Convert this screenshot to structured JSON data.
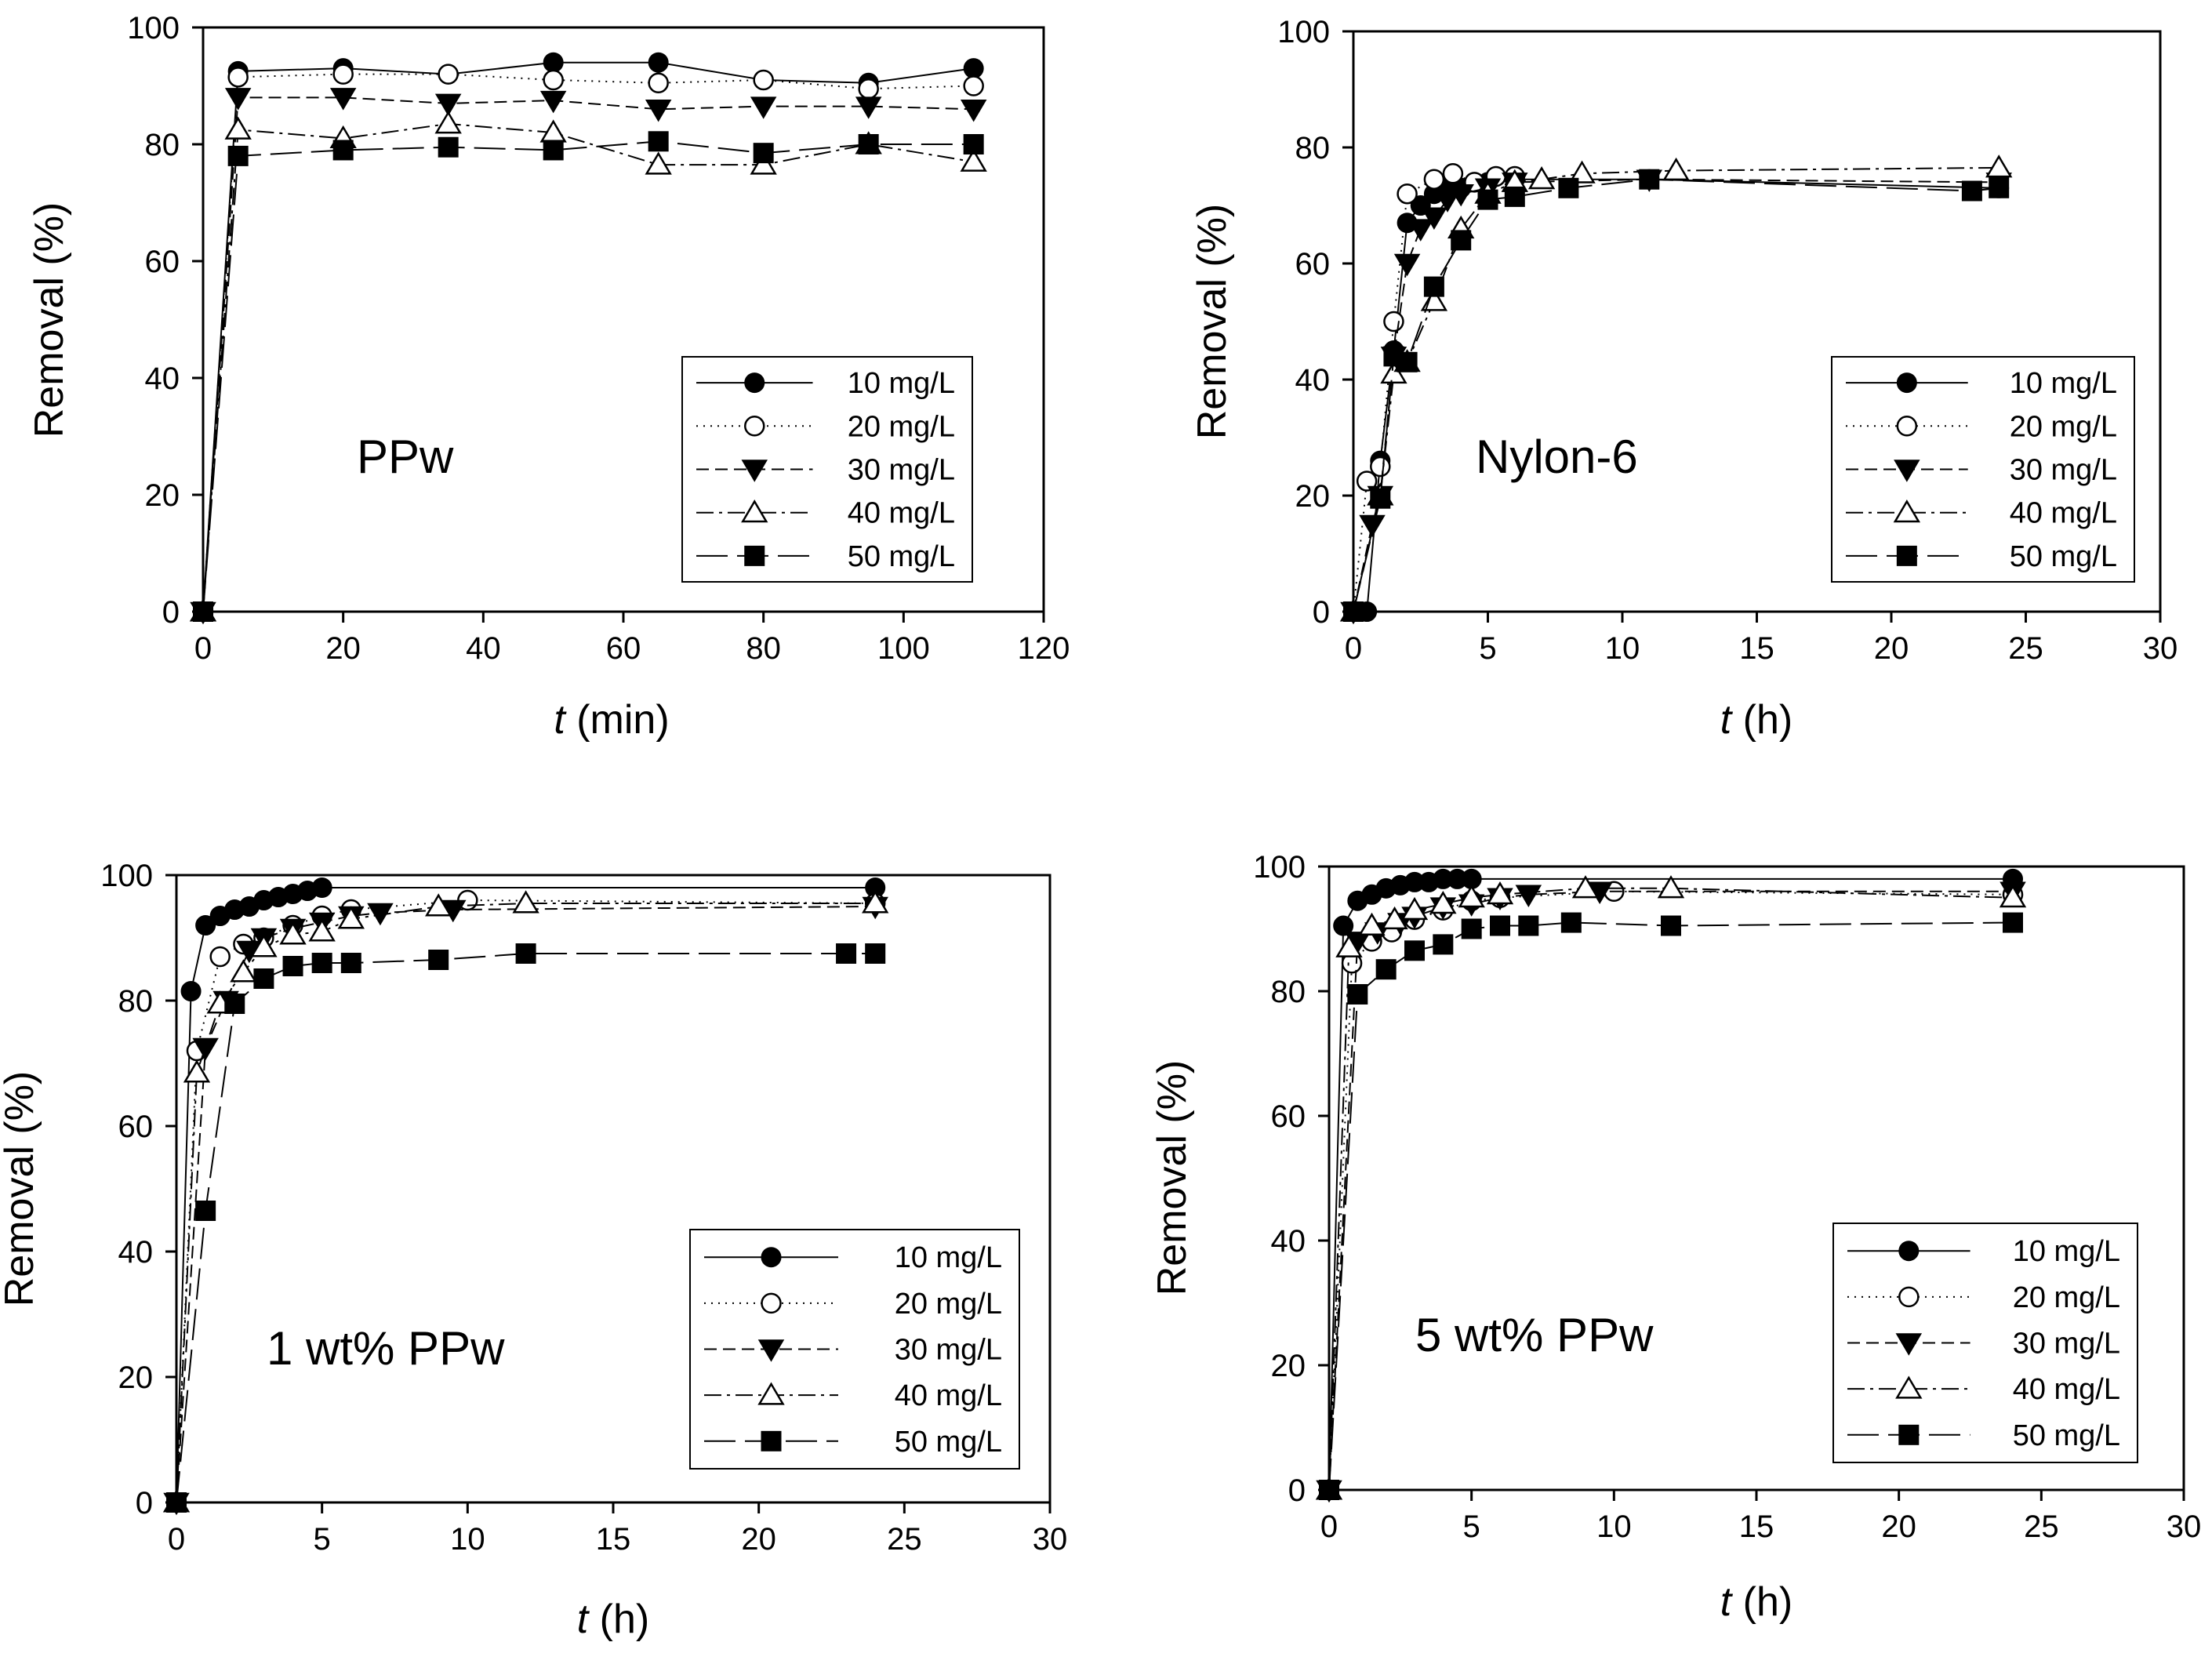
{
  "chart_data": [
    {
      "type": "line",
      "panel_label": "PPw",
      "xlabel_italic": "t",
      "xlabel_unit": " (min)",
      "ylabel": "Removal (%)",
      "xlim": [
        0,
        120
      ],
      "ylim": [
        0,
        100
      ],
      "xticks": [
        0,
        20,
        40,
        60,
        80,
        100,
        120
      ],
      "yticks": [
        0,
        20,
        40,
        60,
        80,
        100
      ],
      "legend_position": "bottom-right",
      "series": [
        {
          "name": "10 mg/L",
          "x": [
            0,
            5,
            20,
            35,
            50,
            65,
            80,
            95,
            110
          ],
          "y": [
            0,
            92.5,
            93,
            92,
            94,
            94,
            91,
            90.5,
            93
          ]
        },
        {
          "name": "20 mg/L",
          "x": [
            0,
            5,
            20,
            35,
            50,
            65,
            80,
            95,
            110
          ],
          "y": [
            0,
            91.5,
            92,
            92,
            91,
            90.5,
            91,
            89.5,
            90
          ]
        },
        {
          "name": "30 mg/L",
          "x": [
            0,
            5,
            20,
            35,
            50,
            65,
            80,
            95,
            110
          ],
          "y": [
            0,
            88,
            88,
            87,
            87.5,
            86,
            86.5,
            86.5,
            86
          ]
        },
        {
          "name": "40 mg/L",
          "x": [
            0,
            5,
            20,
            35,
            50,
            65,
            80,
            95,
            110
          ],
          "y": [
            0,
            82.5,
            81,
            83.5,
            82,
            76.5,
            76.5,
            80,
            77
          ]
        },
        {
          "name": "50 mg/L",
          "x": [
            0,
            5,
            20,
            35,
            50,
            65,
            80,
            95,
            110
          ],
          "y": [
            0,
            78,
            79,
            79.5,
            79,
            80.5,
            78.5,
            80,
            80
          ]
        }
      ]
    },
    {
      "type": "line",
      "panel_label": "Nylon-6",
      "xlabel_italic": "t",
      "xlabel_unit": " (h)",
      "ylabel": "Removal (%)",
      "xlim": [
        0,
        30
      ],
      "ylim": [
        0,
        100
      ],
      "xticks": [
        0,
        5,
        10,
        15,
        20,
        25,
        30
      ],
      "yticks": [
        0,
        20,
        40,
        60,
        80,
        100
      ],
      "legend_position": "bottom-right",
      "series": [
        {
          "name": "10 mg/L",
          "x": [
            0,
            0.5,
            1,
            1.5,
            2,
            2.5,
            3,
            3.5,
            4,
            5,
            6,
            11,
            24
          ],
          "y": [
            0,
            0,
            26,
            45,
            67,
            70,
            72,
            73,
            73,
            74,
            74.5,
            74.5,
            73
          ]
        },
        {
          "name": "20 mg/L",
          "x": [
            0,
            0.5,
            1,
            1.5,
            2,
            3,
            3.7,
            4.5,
            5.3,
            6
          ],
          "y": [
            0,
            22.5,
            25,
            50,
            72,
            74.5,
            75.5,
            74,
            75,
            75
          ]
        },
        {
          "name": "30 mg/L",
          "x": [
            0,
            0.7,
            1,
            1.5,
            2,
            2.5,
            3,
            3.5,
            4,
            5,
            6,
            11,
            24
          ],
          "y": [
            0,
            15,
            20,
            44,
            60,
            66,
            68,
            71,
            72,
            73,
            74,
            74.5,
            74
          ]
        },
        {
          "name": "40 mg/L",
          "x": [
            0,
            1,
            1.5,
            2,
            3,
            4,
            5,
            6,
            7,
            8.5,
            12,
            24
          ],
          "y": [
            0,
            20,
            41,
            43,
            53.5,
            66,
            72,
            74,
            74.5,
            75.5,
            76,
            76.5
          ]
        },
        {
          "name": "50 mg/L",
          "x": [
            0,
            1,
            1.5,
            2,
            3,
            4,
            5,
            6,
            8,
            11,
            23,
            24
          ],
          "y": [
            0,
            19.5,
            44,
            43,
            56,
            64,
            71,
            71.5,
            73,
            74.5,
            72.5,
            73
          ]
        }
      ]
    },
    {
      "type": "line",
      "panel_label": "1 wt% PPw",
      "xlabel_italic": "t",
      "xlabel_unit": " (h)",
      "ylabel": "Removal (%)",
      "xlim": [
        0,
        30
      ],
      "ylim": [
        0,
        100
      ],
      "xticks": [
        0,
        5,
        10,
        15,
        20,
        25,
        30
      ],
      "yticks": [
        0,
        20,
        40,
        60,
        80,
        100
      ],
      "legend_position": "bottom-right",
      "series": [
        {
          "name": "10 mg/L",
          "x": [
            0,
            0.5,
            1,
            1.5,
            2,
            2.5,
            3,
            3.5,
            4,
            4.5,
            5,
            24
          ],
          "y": [
            0,
            81.5,
            92,
            93.5,
            94.5,
            95,
            96,
            96.5,
            97,
            97.5,
            98,
            98
          ]
        },
        {
          "name": "20 mg/L",
          "x": [
            0,
            0.7,
            1.5,
            2.3,
            3,
            4,
            5,
            6,
            10,
            24
          ],
          "y": [
            0,
            72,
            87,
            89,
            90,
            92,
            93.5,
            94.5,
            96,
            95.5
          ]
        },
        {
          "name": "30 mg/L",
          "x": [
            0,
            1,
            1.7,
            2.5,
            3,
            4,
            5,
            6,
            7,
            9.5,
            24
          ],
          "y": [
            0,
            72.5,
            80,
            88,
            90,
            91.5,
            92.5,
            93.5,
            94,
            94.5,
            95
          ]
        },
        {
          "name": "40 mg/L",
          "x": [
            0,
            0.7,
            1.5,
            2.3,
            3,
            4,
            5,
            6,
            9,
            12,
            24
          ],
          "y": [
            0,
            68.5,
            79.5,
            84.5,
            88.5,
            90.5,
            91,
            93,
            95,
            95.5,
            95.5
          ]
        },
        {
          "name": "50 mg/L",
          "x": [
            0,
            1,
            2,
            3,
            4,
            5,
            6,
            9,
            12,
            23,
            24
          ],
          "y": [
            0,
            46.5,
            79.5,
            83.5,
            85.5,
            86,
            86,
            86.5,
            87.5,
            87.5,
            87.5
          ]
        }
      ]
    },
    {
      "type": "line",
      "panel_label": "5 wt% PPw",
      "xlabel_italic": "t",
      "xlabel_unit": " (h)",
      "ylabel": "Removal (%)",
      "xlim": [
        0,
        30
      ],
      "ylim": [
        0,
        100
      ],
      "xticks": [
        0,
        5,
        10,
        15,
        20,
        25,
        30
      ],
      "yticks": [
        0,
        20,
        40,
        60,
        80,
        100
      ],
      "legend_position": "bottom-right",
      "series": [
        {
          "name": "10 mg/L",
          "x": [
            0,
            0.5,
            1,
            1.5,
            2,
            2.5,
            3,
            3.5,
            4,
            4.5,
            5,
            24
          ],
          "y": [
            0,
            90.5,
            94.5,
            95.5,
            96.5,
            97,
            97.5,
            97.5,
            98,
            98,
            98,
            98
          ]
        },
        {
          "name": "20 mg/L",
          "x": [
            0,
            0.8,
            1.5,
            2.2,
            3,
            4,
            5,
            6,
            10,
            24
          ],
          "y": [
            0,
            84.5,
            88,
            89.5,
            91.5,
            93,
            94.5,
            95,
            96,
            95.5
          ]
        },
        {
          "name": "30 mg/L",
          "x": [
            0,
            1,
            1.7,
            2.5,
            3,
            4,
            5,
            6,
            7,
            9.5,
            24
          ],
          "y": [
            0,
            88,
            89.5,
            91,
            92,
            93.5,
            94,
            95,
            95.5,
            96,
            96
          ]
        },
        {
          "name": "40 mg/L",
          "x": [
            0,
            0.7,
            1.5,
            2.3,
            3,
            4,
            5,
            6,
            9,
            12,
            24
          ],
          "y": [
            0,
            87,
            90.5,
            91.5,
            93,
            94,
            95,
            95.5,
            96.5,
            96.5,
            95
          ]
        },
        {
          "name": "50 mg/L",
          "x": [
            0,
            1,
            2,
            3,
            4,
            5,
            6,
            7,
            8.5,
            12,
            24
          ],
          "y": [
            0,
            79.5,
            83.5,
            86.5,
            87.5,
            90,
            90.5,
            90.5,
            91,
            90.5,
            91
          ]
        }
      ]
    }
  ],
  "colors": {
    "line": "#000000",
    "background": "#ffffff"
  }
}
